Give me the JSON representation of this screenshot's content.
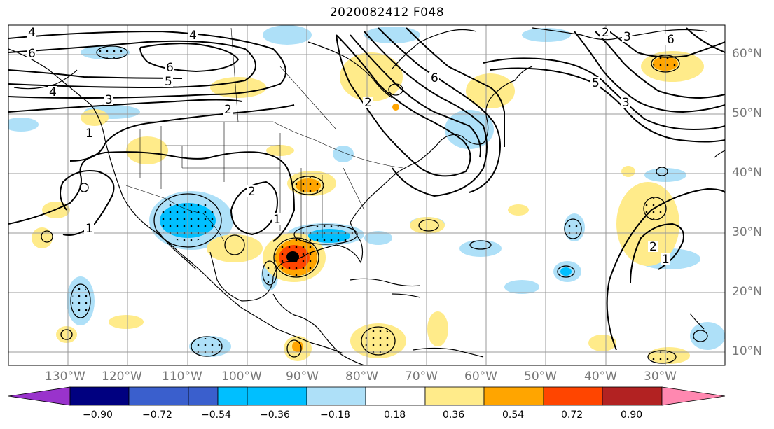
{
  "title": "2020082412 F048",
  "lon_labels": [
    "130°W",
    "120°W",
    "110°W",
    "100°W",
    "90°W",
    "80°W",
    "70°W",
    "60°W",
    "50°W",
    "40°W",
    "30°W"
  ],
  "lat_labels": [
    "60°N",
    "50°N",
    "40°N",
    "30°N",
    "20°N",
    "10°N"
  ],
  "colorbar": {
    "ticks": [
      "−0.90",
      "−0.72",
      "−0.54",
      "−0.36",
      "−0.18",
      "0.18",
      "0.36",
      "0.54",
      "0.72",
      "0.90"
    ],
    "colors": [
      "#9933cc",
      "#000080",
      "#3a5fcd",
      "#00bfff",
      "#aee0f8",
      "#ffffff",
      "#ffeb8a",
      "#ffa500",
      "#ff4500",
      "#b22222",
      "#ff88b0"
    ]
  },
  "contour_labels": [
    "4",
    "4",
    "6",
    "6",
    "5",
    "3",
    "2",
    "1",
    "1",
    "2",
    "1",
    "2",
    "6",
    "5",
    "3",
    "2",
    "6",
    "4",
    "3",
    "1",
    "2"
  ],
  "colors": {
    "land_line": "#000000",
    "grid": "#999999",
    "contour": "#000000"
  }
}
